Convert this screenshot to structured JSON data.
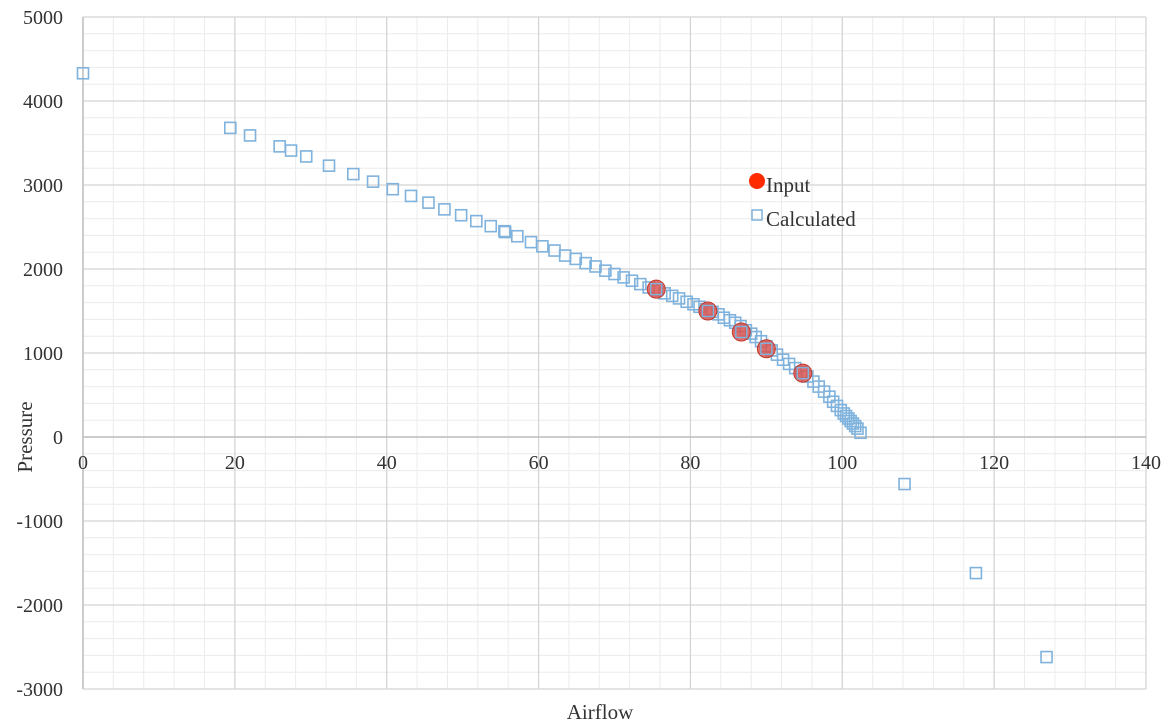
{
  "chart_data": {
    "type": "scatter",
    "title": "",
    "xlabel": "Airflow",
    "ylabel": "Pressure",
    "xlim": [
      0,
      140
    ],
    "ylim": [
      -3000,
      5000
    ],
    "x_ticks": [
      "0",
      "20",
      "40",
      "60",
      "80",
      "100",
      "120",
      "140"
    ],
    "y_ticks": [
      "5000",
      "4000",
      "3000",
      "2000",
      "1000",
      "0",
      "-1000",
      "-2000",
      "-3000"
    ],
    "grid": true,
    "legend_position": "inside-top-right",
    "series": [
      {
        "name": "Input",
        "marker": "circle",
        "color": "#ff2a00",
        "points": [
          [
            75.5,
            1760
          ],
          [
            82.3,
            1500
          ],
          [
            86.7,
            1250
          ],
          [
            90,
            1050
          ],
          [
            94.8,
            760
          ]
        ]
      },
      {
        "name": "Calculated",
        "marker": "square",
        "color": "#7fb2dc",
        "points": [
          [
            0,
            4330
          ],
          [
            19.4,
            3680
          ],
          [
            22,
            3590
          ],
          [
            25.9,
            3460
          ],
          [
            27.4,
            3410
          ],
          [
            29.4,
            3340
          ],
          [
            32.4,
            3230
          ],
          [
            35.6,
            3130
          ],
          [
            38.2,
            3040
          ],
          [
            40.8,
            2950
          ],
          [
            43.2,
            2870
          ],
          [
            45.5,
            2790
          ],
          [
            47.6,
            2710
          ],
          [
            49.8,
            2640
          ],
          [
            51.8,
            2570
          ],
          [
            53.7,
            2510
          ],
          [
            55.5,
            2450
          ],
          [
            55.6,
            2440
          ],
          [
            57.2,
            2390
          ],
          [
            59,
            2320
          ],
          [
            60.5,
            2270
          ],
          [
            62.1,
            2220
          ],
          [
            63.5,
            2160
          ],
          [
            64.9,
            2120
          ],
          [
            66.2,
            2070
          ],
          [
            67.5,
            2030
          ],
          [
            68.8,
            1980
          ],
          [
            70,
            1940
          ],
          [
            71.2,
            1900
          ],
          [
            72.3,
            1860
          ],
          [
            73.4,
            1820
          ],
          [
            74.5,
            1780
          ],
          [
            75.6,
            1750
          ],
          [
            76.6,
            1710
          ],
          [
            77.6,
            1680
          ],
          [
            78.5,
            1650
          ],
          [
            79.5,
            1610
          ],
          [
            80.4,
            1580
          ],
          [
            81.2,
            1550
          ],
          [
            82.1,
            1520
          ],
          [
            82.9,
            1490
          ],
          [
            83.7,
            1460
          ],
          [
            84.4,
            1420
          ],
          [
            85.2,
            1390
          ],
          [
            85.9,
            1360
          ],
          [
            86.6,
            1320
          ],
          [
            87.3,
            1270
          ],
          [
            88,
            1230
          ],
          [
            88.6,
            1190
          ],
          [
            89.3,
            1140
          ],
          [
            90,
            1080
          ],
          [
            90.7,
            1030
          ],
          [
            91.4,
            980
          ],
          [
            92.2,
            920
          ],
          [
            93,
            870
          ],
          [
            93.8,
            820
          ],
          [
            94.6,
            770
          ],
          [
            95.4,
            720
          ],
          [
            96.2,
            660
          ],
          [
            96.9,
            600
          ],
          [
            97.6,
            540
          ],
          [
            98.3,
            480
          ],
          [
            98.8,
            420
          ],
          [
            99.3,
            370
          ],
          [
            99.8,
            320
          ],
          [
            100.2,
            280
          ],
          [
            100.5,
            250
          ],
          [
            100.8,
            220
          ],
          [
            101.1,
            190
          ],
          [
            101.4,
            160
          ],
          [
            101.7,
            130
          ],
          [
            102,
            100
          ],
          [
            102.4,
            50
          ],
          [
            108.2,
            -560
          ],
          [
            117.6,
            -1620
          ],
          [
            126.9,
            -2620
          ]
        ]
      }
    ]
  }
}
